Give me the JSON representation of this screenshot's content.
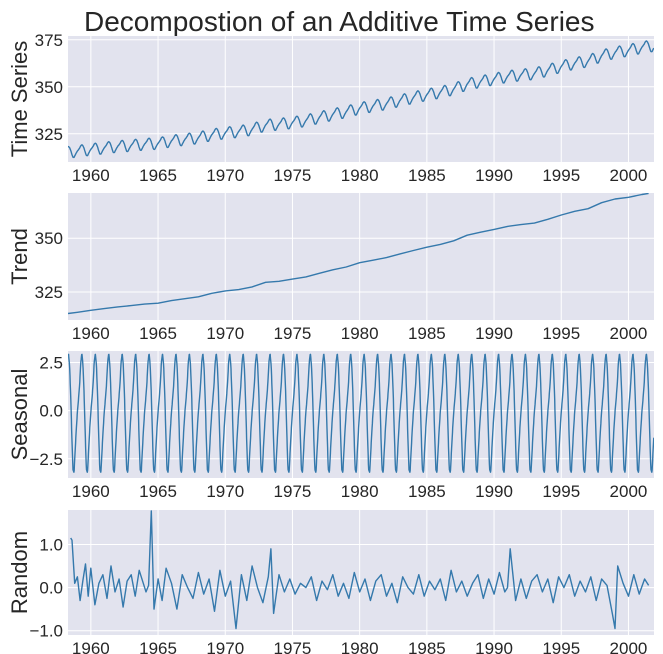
{
  "title": "Decompostion of an Additive Time Series",
  "chart_data": [
    {
      "type": "line",
      "panel": "observed",
      "ylabel": "Time Series",
      "xlim": [
        1958.3,
        2001.9
      ],
      "ylim": [
        310,
        377
      ],
      "yticks": [
        325,
        350,
        375
      ],
      "ytick_labels": [
        "325",
        "350",
        "375"
      ],
      "xticks": [
        1960,
        1965,
        1970,
        1975,
        1980,
        1985,
        1990,
        1995,
        2000
      ],
      "xtick_labels": [
        "1960",
        "1965",
        "1970",
        "1975",
        "1980",
        "1985",
        "1990",
        "1995",
        "2000"
      ],
      "grid": true,
      "series": [
        {
          "x": [
            1958.3,
            1959,
            1960,
            1961,
            1962,
            1963,
            1964,
            1965,
            1966,
            1967,
            1968,
            1969,
            1970,
            1971,
            1972,
            1973,
            1974,
            1975,
            1976,
            1977,
            1978,
            1979,
            1980,
            1981,
            1982,
            1983,
            1984,
            1985,
            1986,
            1987,
            1988,
            1989,
            1990,
            1991,
            1992,
            1993,
            1994,
            1995,
            1996,
            1997,
            1998,
            1999,
            2000,
            2001,
            2001.9
          ],
          "y": [
            315.2,
            315.9,
            316.8,
            317.6,
            318.4,
            318.9,
            319.6,
            320.0,
            321.3,
            322.1,
            323.0,
            324.6,
            325.6,
            326.3,
            327.5,
            329.7,
            330.2,
            331.1,
            332.1,
            333.8,
            335.4,
            336.8,
            338.7,
            339.9,
            341.1,
            342.8,
            344.4,
            345.9,
            347.2,
            348.9,
            351.5,
            352.9,
            354.2,
            355.6,
            356.4,
            357.1,
            358.9,
            360.9,
            362.6,
            363.8,
            366.6,
            368.3,
            369.5,
            371.1,
            372.0
          ]
        }
      ],
      "seasonal_added": true
    },
    {
      "type": "line",
      "panel": "trend",
      "ylabel": "Trend",
      "xlim": [
        1958.3,
        2001.9
      ],
      "ylim": [
        312,
        371
      ],
      "yticks": [
        325,
        350
      ],
      "ytick_labels": [
        "325",
        "350"
      ],
      "xticks": [
        1960,
        1965,
        1970,
        1975,
        1980,
        1985,
        1990,
        1995,
        2000
      ],
      "xtick_labels": [
        "1960",
        "1965",
        "1970",
        "1975",
        "1980",
        "1985",
        "1990",
        "1995",
        "2000"
      ],
      "grid": true,
      "series": [
        {
          "x": [
            1958.3,
            1959,
            1960,
            1961,
            1962,
            1963,
            1964,
            1965,
            1966,
            1967,
            1968,
            1969,
            1970,
            1971,
            1972,
            1973,
            1974,
            1975,
            1976,
            1977,
            1978,
            1979,
            1980,
            1981,
            1982,
            1983,
            1984,
            1985,
            1986,
            1987,
            1988,
            1989,
            1990,
            1991,
            1992,
            1993,
            1994,
            1995,
            1996,
            1997,
            1998,
            1999,
            2000,
            2001,
            2001.5
          ],
          "y": [
            315.0,
            315.6,
            316.5,
            317.3,
            318.1,
            318.7,
            319.4,
            319.8,
            321.0,
            321.9,
            322.8,
            324.4,
            325.5,
            326.1,
            327.4,
            329.5,
            330.0,
            331.0,
            332.0,
            333.7,
            335.3,
            336.6,
            338.6,
            339.8,
            341.0,
            342.7,
            344.3,
            345.8,
            347.1,
            348.8,
            351.4,
            352.8,
            354.1,
            355.5,
            356.3,
            357.0,
            358.8,
            360.8,
            362.5,
            363.7,
            366.5,
            368.2,
            369.0,
            370.3,
            370.8
          ]
        }
      ]
    },
    {
      "type": "line",
      "panel": "seasonal",
      "ylabel": "Seasonal",
      "xlim": [
        1958.3,
        2001.9
      ],
      "ylim": [
        -3.5,
        3.1
      ],
      "yticks": [
        -2.5,
        0.0,
        2.5
      ],
      "ytick_labels": [
        "−2.5",
        "0.0",
        "2.5"
      ],
      "xticks": [
        1960,
        1965,
        1970,
        1975,
        1980,
        1985,
        1990,
        1995,
        2000
      ],
      "xtick_labels": [
        "1960",
        "1965",
        "1970",
        "1975",
        "1980",
        "1985",
        "1990",
        "1995",
        "2000"
      ],
      "grid": true,
      "period": 1.0,
      "monthly_pattern": [
        -0.06,
        0.61,
        1.38,
        2.51,
        2.99,
        2.34,
        0.81,
        -1.26,
        -3.06,
        -3.22,
        -2.06,
        -0.97
      ]
    },
    {
      "type": "line",
      "panel": "random",
      "ylabel": "Random",
      "xlim": [
        1958.3,
        2001.9
      ],
      "ylim": [
        -1.1,
        1.8
      ],
      "yticks": [
        -1.0,
        0.0,
        1.0
      ],
      "ytick_labels": [
        "−1.0",
        "0.0",
        "1.0"
      ],
      "xticks": [
        1960,
        1965,
        1970,
        1975,
        1980,
        1985,
        1990,
        1995,
        2000
      ],
      "xtick_labels": [
        "1960",
        "1965",
        "1970",
        "1975",
        "1980",
        "1985",
        "1990",
        "1995",
        "2000"
      ],
      "grid": true,
      "series": [
        {
          "x": [
            1958.5,
            1958.6,
            1958.8,
            1959.0,
            1959.2,
            1959.4,
            1959.6,
            1959.8,
            1960.0,
            1960.3,
            1960.6,
            1960.9,
            1961.2,
            1961.5,
            1961.8,
            1962.1,
            1962.4,
            1962.7,
            1963.0,
            1963.3,
            1963.6,
            1963.9,
            1964.1,
            1964.3,
            1964.5,
            1964.7,
            1965.0,
            1965.3,
            1965.6,
            1966.0,
            1966.4,
            1966.8,
            1967.2,
            1967.6,
            1968.0,
            1968.4,
            1968.8,
            1969.2,
            1969.6,
            1970.0,
            1970.4,
            1970.8,
            1971.2,
            1971.6,
            1972.0,
            1972.4,
            1972.8,
            1973.2,
            1973.4,
            1973.6,
            1974.0,
            1974.4,
            1974.8,
            1975.2,
            1975.6,
            1976.0,
            1976.4,
            1976.8,
            1977.2,
            1977.6,
            1978.0,
            1978.4,
            1978.8,
            1979.2,
            1979.6,
            1980.0,
            1980.4,
            1980.8,
            1981.2,
            1981.6,
            1982.0,
            1982.4,
            1982.8,
            1983.2,
            1983.6,
            1984.0,
            1984.4,
            1984.8,
            1985.2,
            1985.6,
            1986.0,
            1986.4,
            1986.8,
            1987.2,
            1987.6,
            1988.0,
            1988.4,
            1988.8,
            1989.2,
            1989.6,
            1990.0,
            1990.4,
            1990.8,
            1991.0,
            1991.2,
            1991.6,
            1992.0,
            1992.4,
            1992.8,
            1993.2,
            1993.6,
            1994.0,
            1994.4,
            1994.8,
            1995.2,
            1995.6,
            1996.0,
            1996.4,
            1996.8,
            1997.2,
            1997.6,
            1998.0,
            1998.4,
            1998.8,
            1999.0,
            1999.2,
            1999.6,
            2000.0,
            2000.4,
            2000.8,
            2001.2,
            2001.5
          ],
          "y": [
            1.15,
            1.1,
            0.1,
            0.25,
            -0.3,
            0.15,
            0.55,
            -0.2,
            0.45,
            -0.4,
            0.1,
            0.3,
            -0.25,
            0.5,
            -0.1,
            0.2,
            -0.45,
            0.15,
            0.3,
            -0.2,
            0.4,
            0.1,
            -0.1,
            0.05,
            1.78,
            -0.5,
            0.2,
            -0.3,
            0.45,
            0.1,
            -0.5,
            0.3,
            0.0,
            -0.25,
            0.35,
            -0.15,
            0.2,
            -0.55,
            0.4,
            -0.2,
            0.15,
            -0.95,
            0.3,
            -0.3,
            0.5,
            0.0,
            -0.35,
            0.25,
            0.9,
            -0.6,
            0.3,
            -0.1,
            0.2,
            -0.15,
            0.1,
            0.0,
            0.25,
            -0.3,
            0.15,
            -0.05,
            0.3,
            -0.2,
            0.1,
            -0.25,
            0.35,
            -0.1,
            0.2,
            -0.3,
            0.15,
            0.3,
            -0.2,
            0.1,
            -0.35,
            0.25,
            0.0,
            -0.15,
            0.3,
            -0.2,
            0.15,
            -0.05,
            0.2,
            -0.3,
            0.4,
            -0.1,
            0.15,
            -0.2,
            0.1,
            0.3,
            -0.25,
            0.2,
            -0.15,
            0.35,
            -0.1,
            0.0,
            0.9,
            -0.3,
            0.2,
            -0.25,
            0.15,
            0.3,
            -0.1,
            0.2,
            -0.35,
            0.25,
            0.0,
            0.3,
            -0.2,
            0.15,
            -0.1,
            0.25,
            -0.3,
            0.2,
            0.05,
            -0.6,
            -0.95,
            0.5,
            0.1,
            -0.2,
            0.3,
            -0.15,
            0.2,
            0.05
          ]
        }
      ]
    }
  ]
}
